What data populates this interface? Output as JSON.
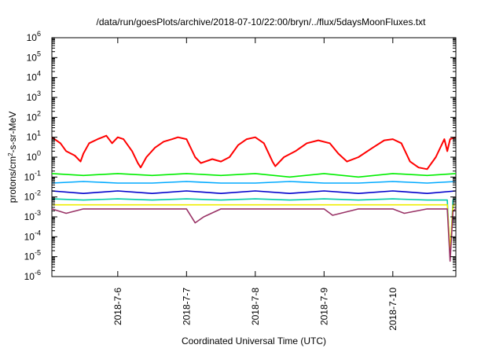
{
  "chart_data": {
    "type": "line",
    "title": "/data/run/goesPlots/archive/2018-07-10/22:00/bryn/../flux/5daysMoonFluxes.txt",
    "xlabel": "Coordinated Universal Time (UTC)",
    "ylabel_main": "protons/cm",
    "ylabel_sup": "2",
    "ylabel_rest": "-s-sr-MeV",
    "x_range": [
      "2018-07-05T01:00",
      "2018-07-10T22:00"
    ],
    "x_ticks": [
      "2018-7-6",
      "2018-7-7",
      "2018-7-8",
      "2018-7-9",
      "2018-7-10"
    ],
    "x_tick_dates": [
      "2018-07-06",
      "2018-07-07",
      "2018-07-08",
      "2018-07-09",
      "2018-07-10"
    ],
    "y_scale": "log",
    "ylim": [
      1e-06,
      1000000.0
    ],
    "y_ticks": [
      {
        "base": "10",
        "exp": "-6"
      },
      {
        "base": "10",
        "exp": "-5"
      },
      {
        "base": "10",
        "exp": "-4"
      },
      {
        "base": "10",
        "exp": "-3"
      },
      {
        "base": "10",
        "exp": "-2"
      },
      {
        "base": "10",
        "exp": "-1"
      },
      {
        "base": "10",
        "exp": "0"
      },
      {
        "base": "10",
        "exp": "1"
      },
      {
        "base": "10",
        "exp": "2"
      },
      {
        "base": "10",
        "exp": "3"
      },
      {
        "base": "10",
        "exp": "4"
      },
      {
        "base": "10",
        "exp": "5"
      },
      {
        "base": "10",
        "exp": "6"
      }
    ],
    "y_tick_exponents": [
      -6,
      -5,
      -4,
      -3,
      -2,
      -1,
      0,
      1,
      2,
      3,
      4,
      5,
      6
    ],
    "grid": false,
    "legend": "none",
    "series": [
      {
        "color": "#ff0000",
        "values": [
          [
            "2018-07-05T01:00",
            10
          ],
          [
            "2018-07-05T04:00",
            5
          ],
          [
            "2018-07-05T06:00",
            2
          ],
          [
            "2018-07-05T09:00",
            1.2
          ],
          [
            "2018-07-05T11:00",
            0.6
          ],
          [
            "2018-07-05T12:00",
            1.5
          ],
          [
            "2018-07-05T14:00",
            5
          ],
          [
            "2018-07-05T17:00",
            8
          ],
          [
            "2018-07-05T20:00",
            12
          ],
          [
            "2018-07-05T22:00",
            5
          ],
          [
            "2018-07-06T00:00",
            10
          ],
          [
            "2018-07-06T02:00",
            8
          ],
          [
            "2018-07-06T05:00",
            2
          ],
          [
            "2018-07-06T07:00",
            0.5
          ],
          [
            "2018-07-06T08:00",
            0.3
          ],
          [
            "2018-07-06T10:00",
            1
          ],
          [
            "2018-07-06T13:00",
            3
          ],
          [
            "2018-07-06T16:00",
            6
          ],
          [
            "2018-07-06T19:00",
            8
          ],
          [
            "2018-07-06T21:00",
            10
          ],
          [
            "2018-07-07T00:00",
            8
          ],
          [
            "2018-07-07T03:00",
            1
          ],
          [
            "2018-07-07T05:00",
            0.5
          ],
          [
            "2018-07-07T09:00",
            0.8
          ],
          [
            "2018-07-07T12:00",
            0.6
          ],
          [
            "2018-07-07T15:00",
            1
          ],
          [
            "2018-07-07T18:00",
            4
          ],
          [
            "2018-07-07T21:00",
            8
          ],
          [
            "2018-07-08T00:00",
            10
          ],
          [
            "2018-07-08T03:00",
            5
          ],
          [
            "2018-07-08T06:00",
            0.6
          ],
          [
            "2018-07-08T07:00",
            0.35
          ],
          [
            "2018-07-08T10:00",
            1
          ],
          [
            "2018-07-08T14:00",
            2
          ],
          [
            "2018-07-08T18:00",
            5
          ],
          [
            "2018-07-08T22:00",
            7
          ],
          [
            "2018-07-09T02:00",
            5
          ],
          [
            "2018-07-09T05:00",
            1.5
          ],
          [
            "2018-07-09T08:00",
            0.6
          ],
          [
            "2018-07-09T12:00",
            1
          ],
          [
            "2018-07-09T17:00",
            3
          ],
          [
            "2018-07-09T21:00",
            7
          ],
          [
            "2018-07-10T00:00",
            8
          ],
          [
            "2018-07-10T03:00",
            5
          ],
          [
            "2018-07-10T06:00",
            0.6
          ],
          [
            "2018-07-10T09:00",
            0.3
          ],
          [
            "2018-07-10T12:00",
            0.25
          ],
          [
            "2018-07-10T15:00",
            1
          ],
          [
            "2018-07-10T18:00",
            8
          ],
          [
            "2018-07-10T19:00",
            2
          ],
          [
            "2018-07-10T20:00",
            8
          ],
          [
            "2018-07-10T22:00",
            10
          ]
        ]
      },
      {
        "color": "#00ee00",
        "values": [
          [
            "2018-07-05T01:00",
            0.15
          ],
          [
            "2018-07-05T12:00",
            0.12
          ],
          [
            "2018-07-06T00:00",
            0.15
          ],
          [
            "2018-07-06T12:00",
            0.12
          ],
          [
            "2018-07-07T00:00",
            0.15
          ],
          [
            "2018-07-07T12:00",
            0.12
          ],
          [
            "2018-07-08T00:00",
            0.15
          ],
          [
            "2018-07-08T12:00",
            0.1
          ],
          [
            "2018-07-09T00:00",
            0.15
          ],
          [
            "2018-07-09T12:00",
            0.1
          ],
          [
            "2018-07-10T00:00",
            0.15
          ],
          [
            "2018-07-10T12:00",
            0.12
          ],
          [
            "2018-07-10T22:00",
            0.15
          ]
        ]
      },
      {
        "color": "#00aaff",
        "values": [
          [
            "2018-07-05T01:00",
            0.05
          ],
          [
            "2018-07-05T12:00",
            0.06
          ],
          [
            "2018-07-06T00:00",
            0.05
          ],
          [
            "2018-07-06T12:00",
            0.05
          ],
          [
            "2018-07-07T00:00",
            0.06
          ],
          [
            "2018-07-07T12:00",
            0.05
          ],
          [
            "2018-07-08T00:00",
            0.05
          ],
          [
            "2018-07-08T12:00",
            0.06
          ],
          [
            "2018-07-09T00:00",
            0.05
          ],
          [
            "2018-07-09T12:00",
            0.05
          ],
          [
            "2018-07-10T00:00",
            0.06
          ],
          [
            "2018-07-10T12:00",
            0.05
          ],
          [
            "2018-07-10T22:00",
            0.06
          ]
        ]
      },
      {
        "color": "#0000cc",
        "values": [
          [
            "2018-07-05T01:00",
            0.02
          ],
          [
            "2018-07-05T12:00",
            0.015
          ],
          [
            "2018-07-06T00:00",
            0.02
          ],
          [
            "2018-07-06T12:00",
            0.015
          ],
          [
            "2018-07-07T00:00",
            0.02
          ],
          [
            "2018-07-07T12:00",
            0.015
          ],
          [
            "2018-07-08T00:00",
            0.02
          ],
          [
            "2018-07-08T12:00",
            0.015
          ],
          [
            "2018-07-09T00:00",
            0.02
          ],
          [
            "2018-07-09T12:00",
            0.015
          ],
          [
            "2018-07-10T00:00",
            0.02
          ],
          [
            "2018-07-10T12:00",
            0.015
          ],
          [
            "2018-07-10T22:00",
            0.02
          ]
        ]
      },
      {
        "color": "#00ccaa",
        "values": [
          [
            "2018-07-05T01:00",
            0.008
          ],
          [
            "2018-07-05T12:00",
            0.007
          ],
          [
            "2018-07-06T00:00",
            0.008
          ],
          [
            "2018-07-06T12:00",
            0.007
          ],
          [
            "2018-07-07T00:00",
            0.008
          ],
          [
            "2018-07-07T12:00",
            0.007
          ],
          [
            "2018-07-08T00:00",
            0.008
          ],
          [
            "2018-07-08T12:00",
            0.007
          ],
          [
            "2018-07-09T00:00",
            0.008
          ],
          [
            "2018-07-09T12:00",
            0.007
          ],
          [
            "2018-07-10T00:00",
            0.008
          ],
          [
            "2018-07-10T12:00",
            0.007
          ],
          [
            "2018-07-10T19:00",
            0.007
          ],
          [
            "2018-07-10T20:00",
            1e-05
          ],
          [
            "2018-07-10T21:00",
            0.007
          ],
          [
            "2018-07-10T22:00",
            0.008
          ]
        ]
      },
      {
        "color": "#eeee00",
        "values": [
          [
            "2018-07-05T01:00",
            0.004
          ],
          [
            "2018-07-05T12:00",
            0.004
          ],
          [
            "2018-07-06T00:00",
            0.004
          ],
          [
            "2018-07-06T12:00",
            0.004
          ],
          [
            "2018-07-07T00:00",
            0.004
          ],
          [
            "2018-07-07T12:00",
            0.004
          ],
          [
            "2018-07-08T00:00",
            0.004
          ],
          [
            "2018-07-08T12:00",
            0.004
          ],
          [
            "2018-07-09T00:00",
            0.004
          ],
          [
            "2018-07-09T12:00",
            0.004
          ],
          [
            "2018-07-10T00:00",
            0.004
          ],
          [
            "2018-07-10T12:00",
            0.004
          ],
          [
            "2018-07-10T19:00",
            0.004
          ],
          [
            "2018-07-10T20:00",
            2e-05
          ],
          [
            "2018-07-10T21:00",
            0.004
          ],
          [
            "2018-07-10T22:00",
            0.004
          ]
        ]
      },
      {
        "color": "#993366",
        "values": [
          [
            "2018-07-05T01:00",
            0.0025
          ],
          [
            "2018-07-05T06:00",
            0.0015
          ],
          [
            "2018-07-05T12:00",
            0.0025
          ],
          [
            "2018-07-06T00:00",
            0.0025
          ],
          [
            "2018-07-06T12:00",
            0.0025
          ],
          [
            "2018-07-07T00:00",
            0.0025
          ],
          [
            "2018-07-07T03:00",
            0.0005
          ],
          [
            "2018-07-07T06:00",
            0.001
          ],
          [
            "2018-07-07T12:00",
            0.0025
          ],
          [
            "2018-07-08T00:00",
            0.0025
          ],
          [
            "2018-07-08T12:00",
            0.0025
          ],
          [
            "2018-07-09T00:00",
            0.0025
          ],
          [
            "2018-07-09T03:00",
            0.0012
          ],
          [
            "2018-07-09T12:00",
            0.0025
          ],
          [
            "2018-07-10T00:00",
            0.0025
          ],
          [
            "2018-07-10T04:00",
            0.0015
          ],
          [
            "2018-07-10T12:00",
            0.0025
          ],
          [
            "2018-07-10T19:00",
            0.0025
          ],
          [
            "2018-07-10T20:00",
            6e-06
          ],
          [
            "2018-07-10T21:00",
            0.002
          ],
          [
            "2018-07-10T22:00",
            0.0025
          ]
        ]
      }
    ]
  }
}
